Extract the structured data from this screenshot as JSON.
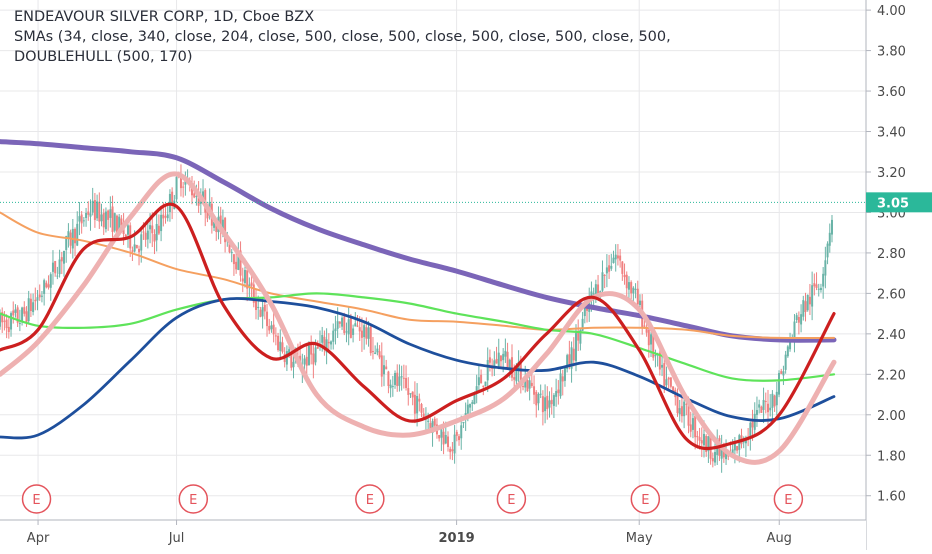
{
  "legend": {
    "title": "ENDEAVOUR SILVER CORP, 1D, Cboe BZX",
    "smas": "SMAs (34, close, 340, close, 204, close, 500, close, 500, close, 500, close, 500, close, 500,",
    "indicator": "DOUBLEHULL (500, 170)"
  },
  "colors": {
    "background": "#ffffff",
    "grid": "#e8e8ea",
    "axis_text": "#4a4a4a",
    "price_up": "#69b3a7",
    "price_down": "#f08080",
    "earnings_marker": "#e4545c",
    "last_price_bg": "#2bb89a",
    "last_price_text": "#ffffff"
  },
  "chart_data": {
    "type": "line",
    "title": "ENDEAVOUR SILVER CORP, 1D, Cboe BZX",
    "xlabel": "",
    "ylabel": "",
    "ylim": [
      1.48,
      4.05
    ],
    "y_ticks": [
      1.6,
      1.8,
      2.0,
      2.2,
      2.4,
      2.6,
      2.8,
      3.0,
      3.2,
      3.4,
      3.6,
      3.8,
      4.0
    ],
    "y_tick_labels": [
      "1.60",
      "1.80",
      "2.00",
      "2.20",
      "2.40",
      "2.60",
      "2.80",
      "3.00",
      "3.20",
      "3.40",
      "3.60",
      "3.80",
      "4.00"
    ],
    "x_tick_labels": [
      "Apr",
      "Jul",
      "2019",
      "May",
      "Aug"
    ],
    "x_tick_dates": [
      "2018-04-01",
      "2018-07-01",
      "2019-01-01",
      "2019-05-01",
      "2019-08-01"
    ],
    "x_range": [
      "2018-03-07",
      "2019-09-27"
    ],
    "grid": true,
    "last_price": 3.05,
    "last_price_label": "3.05",
    "earnings_marker_label": "E",
    "earnings_dates": [
      "2018-03-31",
      "2018-07-12",
      "2018-11-05",
      "2019-02-06",
      "2019-05-05",
      "2019-08-07"
    ],
    "price_series": {
      "name": "",
      "dates": [
        "2018-03-07",
        "2018-03-21",
        "2018-04-05",
        "2018-04-20",
        "2018-05-05",
        "2018-05-20",
        "2018-06-04",
        "2018-06-19",
        "2018-07-04",
        "2018-07-19",
        "2018-08-03",
        "2018-08-18",
        "2018-09-02",
        "2018-09-17",
        "2018-10-02",
        "2018-10-17",
        "2018-11-01",
        "2018-11-16",
        "2018-12-01",
        "2018-12-16",
        "2018-12-31",
        "2019-01-15",
        "2019-01-30",
        "2019-02-14",
        "2019-03-01",
        "2019-03-16",
        "2019-03-31",
        "2019-04-15",
        "2019-04-30",
        "2019-05-15",
        "2019-05-30",
        "2019-06-14",
        "2019-06-29",
        "2019-07-14",
        "2019-07-29",
        "2019-08-13",
        "2019-08-28",
        "2019-09-06"
      ],
      "values": [
        2.45,
        2.48,
        2.62,
        2.84,
        3.02,
        2.96,
        2.84,
        2.92,
        3.18,
        3.05,
        2.88,
        2.62,
        2.4,
        2.24,
        2.32,
        2.44,
        2.42,
        2.2,
        2.1,
        1.95,
        1.85,
        2.15,
        2.3,
        2.18,
        2.04,
        2.26,
        2.58,
        2.8,
        2.55,
        2.2,
        2.02,
        1.85,
        1.78,
        1.96,
        2.1,
        2.48,
        2.66,
        3.05
      ]
    },
    "series": [
      {
        "name": "",
        "color": "#7b65b8",
        "width": 5,
        "dates": [
          "2018-03-07",
          "2018-04-01",
          "2018-05-01",
          "2018-06-01",
          "2018-07-01",
          "2018-08-01",
          "2018-09-01",
          "2018-10-01",
          "2018-11-01",
          "2018-12-01",
          "2019-01-01",
          "2019-02-01",
          "2019-03-01",
          "2019-04-01",
          "2019-05-01",
          "2019-06-01",
          "2019-07-01",
          "2019-08-01",
          "2019-09-06"
        ],
        "values": [
          3.35,
          3.34,
          3.32,
          3.3,
          3.27,
          3.15,
          3.02,
          2.92,
          2.84,
          2.77,
          2.71,
          2.64,
          2.58,
          2.53,
          2.49,
          2.44,
          2.39,
          2.37,
          2.37
        ]
      },
      {
        "name": "",
        "color": "#f5a060",
        "width": 2,
        "dates": [
          "2018-03-07",
          "2018-04-01",
          "2018-05-01",
          "2018-06-01",
          "2018-07-01",
          "2018-08-01",
          "2018-09-01",
          "2018-10-01",
          "2018-11-01",
          "2018-12-01",
          "2019-01-01",
          "2019-02-01",
          "2019-03-01",
          "2019-04-01",
          "2019-05-01",
          "2019-06-01",
          "2019-07-01",
          "2019-08-01",
          "2019-09-06"
        ],
        "values": [
          3.0,
          2.9,
          2.86,
          2.8,
          2.72,
          2.67,
          2.6,
          2.56,
          2.52,
          2.47,
          2.46,
          2.44,
          2.42,
          2.43,
          2.43,
          2.42,
          2.39,
          2.38,
          2.38
        ]
      },
      {
        "name": "",
        "color": "#5ee35a",
        "width": 2.2,
        "dates": [
          "2018-03-07",
          "2018-04-01",
          "2018-05-01",
          "2018-06-01",
          "2018-07-01",
          "2018-08-01",
          "2018-09-01",
          "2018-10-01",
          "2018-11-01",
          "2018-12-01",
          "2019-01-01",
          "2019-02-01",
          "2019-03-01",
          "2019-04-01",
          "2019-05-01",
          "2019-06-01",
          "2019-07-01",
          "2019-08-01",
          "2019-09-06"
        ],
        "values": [
          2.5,
          2.44,
          2.43,
          2.45,
          2.52,
          2.57,
          2.58,
          2.6,
          2.58,
          2.55,
          2.5,
          2.46,
          2.42,
          2.4,
          2.33,
          2.25,
          2.18,
          2.17,
          2.2
        ]
      },
      {
        "name": "",
        "color": "#1e4f9c",
        "width": 2.8,
        "dates": [
          "2018-03-07",
          "2018-04-01",
          "2018-05-01",
          "2018-06-01",
          "2018-07-01",
          "2018-08-01",
          "2018-09-01",
          "2018-10-01",
          "2018-11-01",
          "2018-12-01",
          "2019-01-01",
          "2019-02-01",
          "2019-03-01",
          "2019-04-01",
          "2019-05-01",
          "2019-06-01",
          "2019-07-01",
          "2019-08-01",
          "2019-09-06"
        ],
        "values": [
          1.89,
          1.9,
          2.05,
          2.27,
          2.48,
          2.57,
          2.56,
          2.53,
          2.46,
          2.35,
          2.27,
          2.23,
          2.22,
          2.26,
          2.19,
          2.08,
          1.99,
          1.98,
          2.09
        ]
      },
      {
        "name": "",
        "color": "#eeb1b1",
        "width": 5,
        "dates": [
          "2018-03-07",
          "2018-04-01",
          "2018-05-01",
          "2018-06-01",
          "2018-07-01",
          "2018-08-01",
          "2018-09-01",
          "2018-10-01",
          "2018-11-01",
          "2018-12-01",
          "2019-01-01",
          "2019-02-01",
          "2019-03-01",
          "2019-04-01",
          "2019-05-01",
          "2019-06-01",
          "2019-07-01",
          "2019-08-01",
          "2019-09-06"
        ],
        "values": [
          2.2,
          2.36,
          2.64,
          2.98,
          3.19,
          2.9,
          2.55,
          2.1,
          1.94,
          1.9,
          1.97,
          2.08,
          2.3,
          2.58,
          2.52,
          2.08,
          1.8,
          1.82,
          2.26
        ]
      },
      {
        "name": "",
        "color": "#cc1f1f",
        "width": 3.2,
        "dates": [
          "2018-03-07",
          "2018-04-01",
          "2018-05-01",
          "2018-06-01",
          "2018-07-01",
          "2018-08-01",
          "2018-09-01",
          "2018-10-01",
          "2018-11-01",
          "2018-12-01",
          "2019-01-01",
          "2019-02-01",
          "2019-03-01",
          "2019-04-01",
          "2019-05-01",
          "2019-06-01",
          "2019-07-01",
          "2019-08-01",
          "2019-09-06"
        ],
        "values": [
          2.32,
          2.42,
          2.82,
          2.88,
          3.03,
          2.54,
          2.28,
          2.35,
          2.14,
          1.97,
          2.07,
          2.18,
          2.4,
          2.58,
          2.32,
          1.88,
          1.86,
          2.0,
          2.5
        ]
      }
    ]
  }
}
